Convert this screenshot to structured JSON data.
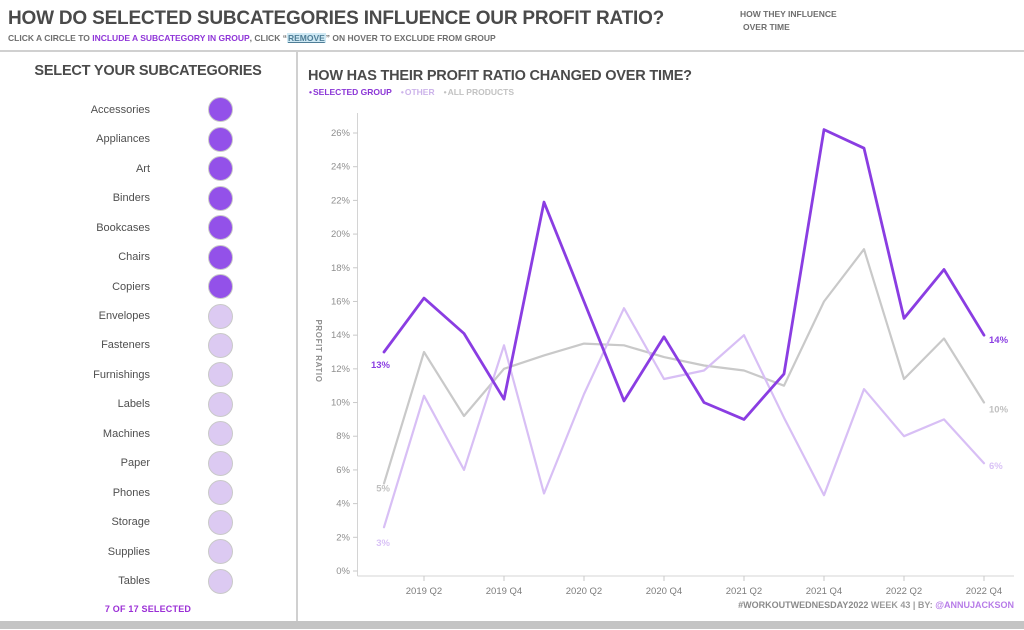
{
  "header": {
    "title": "HOW DO SELECTED SUBCATEGORIES INFLUENCE OUR PROFIT RATIO?",
    "subtitle_prefix": "CLICK A CIRCLE TO ",
    "subtitle_highlight": "INCLUDE A SUBCATEGORY IN GROUP",
    "subtitle_mid": ",  CLICK “",
    "subtitle_remove": "REMOVE",
    "subtitle_suffix": "” ON HOVER TO EXCLUDE FROM GROUP",
    "note_line1": "HOW THEY INFLUENCE",
    "note_line2": "OVER TIME"
  },
  "sidebar": {
    "title": "SELECT YOUR SUBCATEGORIES",
    "footer": "7 OF 17 SELECTED",
    "colors": {
      "selected": "#9351e9",
      "unselected": "#dccaf2",
      "circle_border": "#c9c9c9"
    },
    "items": [
      {
        "label": "Accessories",
        "selected": true
      },
      {
        "label": "Appliances",
        "selected": true
      },
      {
        "label": "Art",
        "selected": true
      },
      {
        "label": "Binders",
        "selected": true
      },
      {
        "label": "Bookcases",
        "selected": true
      },
      {
        "label": "Chairs",
        "selected": true
      },
      {
        "label": "Copiers",
        "selected": true
      },
      {
        "label": "Envelopes",
        "selected": false
      },
      {
        "label": "Fasteners",
        "selected": false
      },
      {
        "label": "Furnishings",
        "selected": false
      },
      {
        "label": "Labels",
        "selected": false
      },
      {
        "label": "Machines",
        "selected": false
      },
      {
        "label": "Paper",
        "selected": false
      },
      {
        "label": "Phones",
        "selected": false
      },
      {
        "label": "Storage",
        "selected": false
      },
      {
        "label": "Supplies",
        "selected": false
      },
      {
        "label": "Tables",
        "selected": false
      }
    ]
  },
  "chart": {
    "title": "HOW HAS THEIR PROFIT RATIO CHANGED OVER TIME?",
    "y_axis_title": "PROFIT RATIO",
    "legend": [
      {
        "label": "SELECTED GROUP",
        "color": "#8b35d6"
      },
      {
        "label": "OTHER",
        "color": "#ccb3ea"
      },
      {
        "label": "ALL PRODUCTS",
        "color": "#c2c2c2"
      }
    ]
  },
  "chart_data": {
    "type": "line",
    "title": "HOW HAS THEIR PROFIT RATIO CHANGED OVER TIME?",
    "ylabel": "PROFIT RATIO",
    "ylim": [
      0,
      26
    ],
    "ytick_step": 2,
    "ytick_suffix": "%",
    "grid": false,
    "legend_position": "top-left",
    "x": [
      "2019 Q1",
      "2019 Q2",
      "2019 Q3",
      "2019 Q4",
      "2020 Q1",
      "2020 Q2",
      "2020 Q3",
      "2020 Q4",
      "2021 Q1",
      "2021 Q2",
      "2021 Q3",
      "2021 Q4",
      "2022 Q1",
      "2022 Q2",
      "2022 Q3",
      "2022 Q4"
    ],
    "x_ticks": [
      {
        "index": 1,
        "label": "2019 Q2"
      },
      {
        "index": 3,
        "label": "2019 Q4"
      },
      {
        "index": 5,
        "label": "2020 Q2"
      },
      {
        "index": 7,
        "label": "2020 Q4"
      },
      {
        "index": 9,
        "label": "2021 Q2"
      },
      {
        "index": 11,
        "label": "2021 Q4"
      },
      {
        "index": 13,
        "label": "2022 Q2"
      },
      {
        "index": 15,
        "label": "2022 Q4"
      }
    ],
    "series": [
      {
        "name": "ALL PRODUCTS",
        "color": "#c9c9c9",
        "width": 2.2,
        "values": [
          5.2,
          13.0,
          9.2,
          12.0,
          12.8,
          13.5,
          13.4,
          12.7,
          12.2,
          11.9,
          11.0,
          16.0,
          19.1,
          11.4,
          13.8,
          10.0
        ],
        "start_label": "5%",
        "end_label": "10%",
        "label_color": "#c0c0c0"
      },
      {
        "name": "OTHER",
        "color": "#d8bff5",
        "width": 2.2,
        "values": [
          2.6,
          10.4,
          6.0,
          13.4,
          4.6,
          10.5,
          15.6,
          11.4,
          11.9,
          14.0,
          9.1,
          4.5,
          10.8,
          8.0,
          9.0,
          6.4
        ],
        "start_label": "3%",
        "end_label": "6%",
        "label_color": "#d9c2f6"
      },
      {
        "name": "SELECTED GROUP",
        "color": "#8a3de2",
        "width": 2.8,
        "values": [
          13.0,
          16.2,
          14.1,
          10.2,
          21.9,
          16.0,
          10.1,
          13.9,
          10.0,
          9.0,
          11.7,
          26.2,
          25.1,
          15.0,
          17.9,
          14.0
        ],
        "start_label": "13%",
        "end_label": "14%",
        "label_color": "#8a3de2"
      }
    ]
  },
  "footer": {
    "tag": "#WORKOUTWEDNESDAY2022",
    "rest": " WEEK 43 | BY: ",
    "author": "@ANNUJACKSON"
  }
}
